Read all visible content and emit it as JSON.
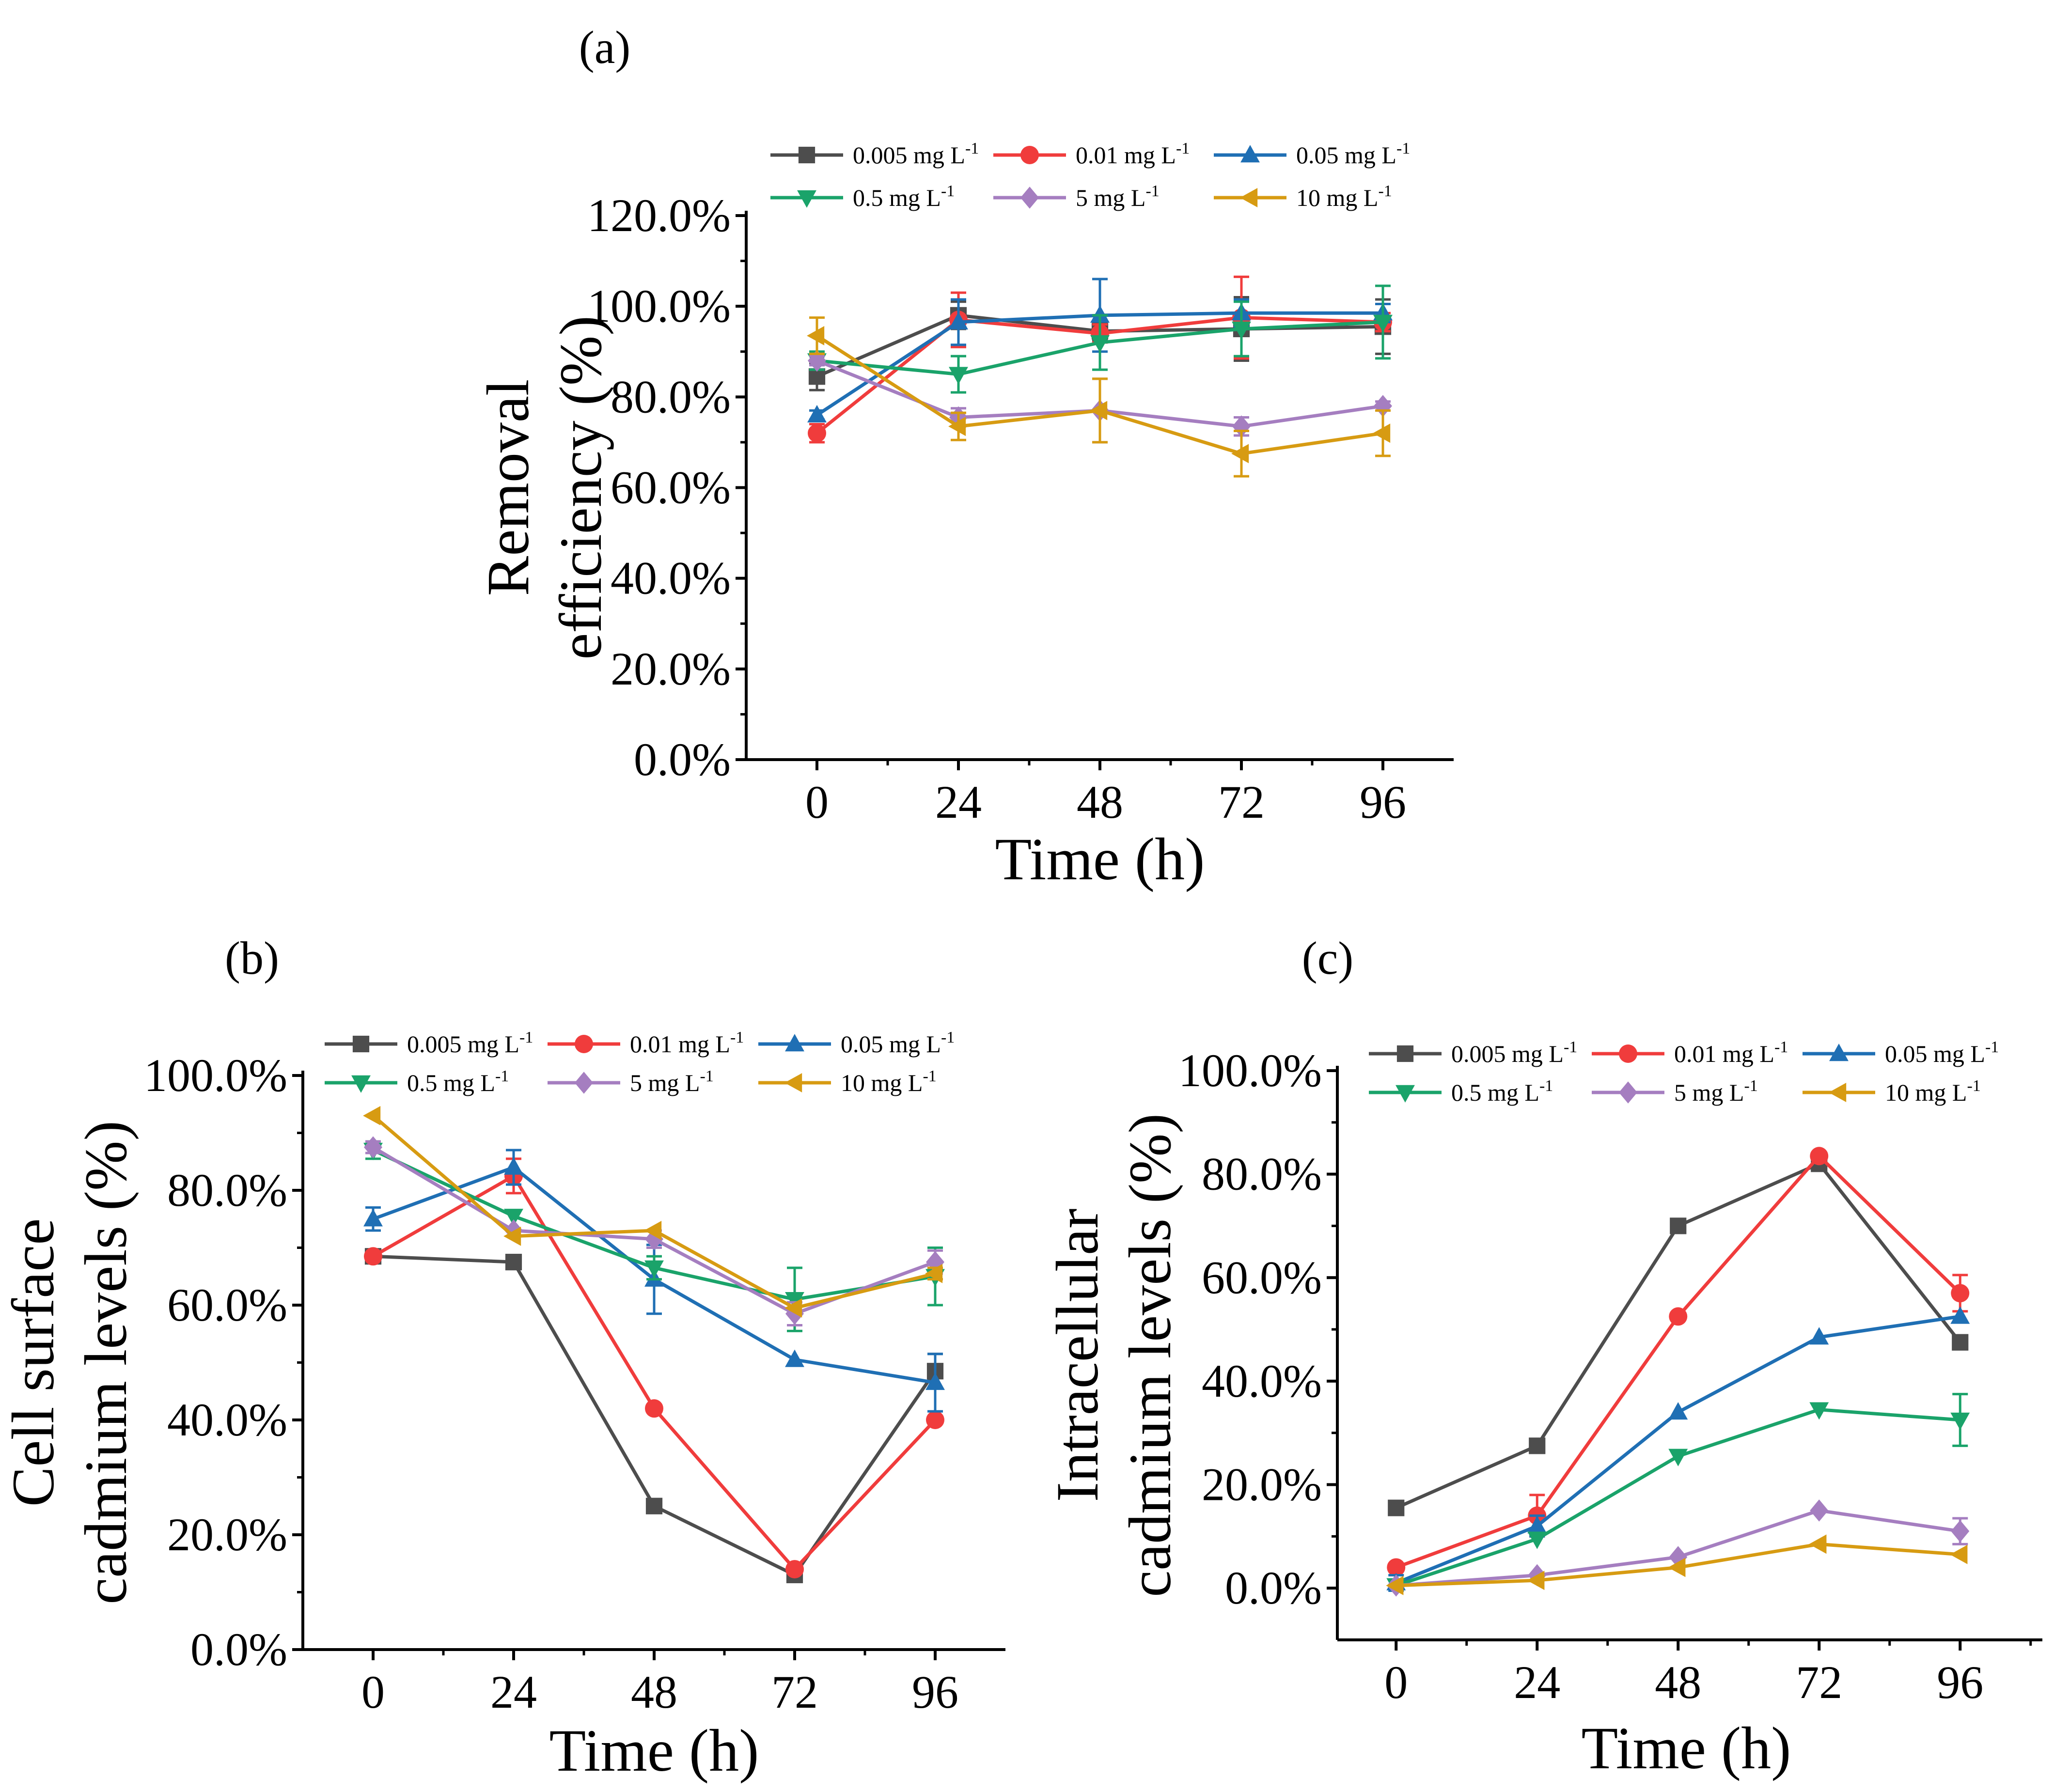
{
  "legend": {
    "entries": [
      "0.005 mg L",
      "0.01 mg L",
      "0.05 mg L",
      "0.5 mg L",
      "5 mg L",
      "10 mg L"
    ],
    "superscript": "-1"
  },
  "series_style": [
    {
      "color": "#4d4d4d",
      "marker": "square"
    },
    {
      "color": "#f03c3c",
      "marker": "circle"
    },
    {
      "color": "#1f6fb4",
      "marker": "triangle-up"
    },
    {
      "color": "#1aa36a",
      "marker": "triangle-down"
    },
    {
      "color": "#a57ec0",
      "marker": "diamond"
    },
    {
      "color": "#d79b12",
      "marker": "triangle-left"
    }
  ],
  "chart_data": [
    {
      "type": "line",
      "panel_label": "(a)",
      "xlabel": "Time (h)",
      "ylabel": [
        "Removal",
        "efficiency (%)"
      ],
      "x": [
        0,
        24,
        48,
        72,
        96
      ],
      "x_tick_labels": [
        "0",
        "24",
        "48",
        "72",
        "96"
      ],
      "xlim": [
        -12,
        108
      ],
      "ylim": [
        0,
        120
      ],
      "y_ticks": [
        0,
        20,
        40,
        60,
        80,
        100,
        120
      ],
      "y_tick_labels": [
        "0.0%",
        "20.0%",
        "40.0%",
        "60.0%",
        "80.0%",
        "100.0%",
        "120.0%"
      ],
      "series": [
        {
          "name": "0.005 mg L-1",
          "values": [
            84.5,
            98.0,
            94.5,
            95.0,
            95.5
          ],
          "errors": [
            3,
            3,
            2,
            7,
            6
          ]
        },
        {
          "name": "0.01 mg L-1",
          "values": [
            72.0,
            97.0,
            94.0,
            97.5,
            96.5
          ],
          "errors": [
            2,
            6,
            2,
            9,
            2
          ]
        },
        {
          "name": "0.05 mg L-1",
          "values": [
            76.0,
            96.5,
            98.0,
            98.5,
            98.5
          ],
          "errors": [
            1,
            5,
            8,
            3,
            2
          ]
        },
        {
          "name": "0.5 mg L-1",
          "values": [
            88.0,
            85.0,
            92.0,
            95.0,
            96.5
          ],
          "errors": [
            2,
            4,
            6,
            6,
            8
          ]
        },
        {
          "name": "5 mg L-1",
          "values": [
            88.0,
            75.5,
            77.0,
            73.5,
            78.0
          ],
          "errors": [
            1,
            2,
            7,
            2,
            1
          ]
        },
        {
          "name": "10 mg L-1",
          "values": [
            93.5,
            73.5,
            77.0,
            67.5,
            72.0
          ],
          "errors": [
            4,
            3,
            7,
            5,
            5
          ]
        }
      ]
    },
    {
      "type": "line",
      "panel_label": "(b)",
      "xlabel": "Time (h)",
      "ylabel": [
        "Cell surface",
        "cadmium levels (%)"
      ],
      "x": [
        0,
        24,
        48,
        72,
        96
      ],
      "x_tick_labels": [
        "0",
        "24",
        "48",
        "72",
        "96"
      ],
      "xlim": [
        -12,
        108
      ],
      "ylim": [
        0,
        100
      ],
      "y_ticks": [
        0,
        20,
        40,
        60,
        80,
        100
      ],
      "y_tick_labels": [
        "0.0%",
        "20.0%",
        "40.0%",
        "60.0%",
        "80.0%",
        "100.0%"
      ],
      "series": [
        {
          "name": "0.005 mg L-1",
          "values": [
            68.5,
            67.5,
            25.0,
            13.0,
            48.5
          ],
          "errors": [
            0,
            0,
            0,
            0,
            3
          ]
        },
        {
          "name": "0.01 mg L-1",
          "values": [
            68.5,
            82.5,
            42.0,
            14.0,
            40.0
          ],
          "errors": [
            0,
            3,
            0,
            0,
            0
          ]
        },
        {
          "name": "0.05 mg L-1",
          "values": [
            75.0,
            84.0,
            64.5,
            50.5,
            46.5
          ],
          "errors": [
            2,
            3,
            6,
            0,
            5
          ]
        },
        {
          "name": "0.5 mg L-1",
          "values": [
            87.0,
            75.5,
            66.5,
            61.0,
            65.0
          ],
          "errors": [
            1.5,
            0,
            2,
            5.5,
            5
          ]
        },
        {
          "name": "5 mg L-1",
          "values": [
            87.5,
            73.0,
            71.5,
            58.5,
            67.5
          ],
          "errors": [
            1,
            0,
            1.5,
            2,
            2
          ]
        },
        {
          "name": "10 mg L-1",
          "values": [
            93.0,
            72.0,
            73.0,
            59.5,
            65.5
          ],
          "errors": [
            0,
            0,
            0,
            0,
            1
          ]
        }
      ]
    },
    {
      "type": "line",
      "panel_label": "(c)",
      "xlabel": "Time (h)",
      "ylabel": [
        "Intracellular",
        "cadmium levels (%)"
      ],
      "x": [
        0,
        24,
        48,
        72,
        96
      ],
      "x_tick_labels": [
        "0",
        "24",
        "48",
        "72",
        "96"
      ],
      "xlim": [
        -10,
        110
      ],
      "ylim": [
        -10,
        100
      ],
      "y_ticks": [
        0,
        20,
        40,
        60,
        80,
        100
      ],
      "y_tick_labels": [
        "0.0%",
        "20.0%",
        "40.0%",
        "60.0%",
        "80.0%",
        "100.0%"
      ],
      "series": [
        {
          "name": "0.005 mg L-1",
          "values": [
            15.5,
            27.5,
            70.0,
            82.0,
            47.5
          ],
          "errors": [
            0,
            0,
            0,
            0,
            0
          ]
        },
        {
          "name": "0.01 mg L-1",
          "values": [
            4.0,
            14.0,
            52.5,
            83.5,
            57.0
          ],
          "errors": [
            0,
            4,
            0,
            0,
            3.5
          ]
        },
        {
          "name": "0.05 mg L-1",
          "values": [
            1.0,
            12.0,
            34.0,
            48.5,
            52.5
          ],
          "errors": [
            1.5,
            2,
            0,
            0,
            0
          ]
        },
        {
          "name": "0.5 mg L-1",
          "values": [
            0.5,
            9.5,
            25.5,
            34.5,
            32.5
          ],
          "errors": [
            0,
            0,
            0,
            0,
            5
          ]
        },
        {
          "name": "5 mg L-1",
          "values": [
            0.5,
            2.5,
            6.0,
            15.0,
            11.0
          ],
          "errors": [
            0,
            0,
            0,
            0,
            2.5
          ]
        },
        {
          "name": "10 mg L-1",
          "values": [
            0.5,
            1.5,
            4.0,
            8.5,
            6.5
          ],
          "errors": [
            0,
            0,
            0,
            0,
            0
          ]
        }
      ]
    }
  ]
}
